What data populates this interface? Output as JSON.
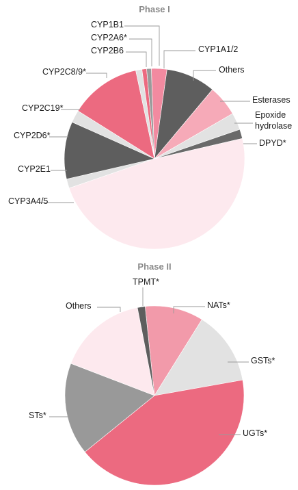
{
  "chart_data": [
    {
      "type": "pie",
      "title": "Phase I",
      "unit": "degrees",
      "slices": [
        {
          "name": "CYP1A1/2",
          "value": 10,
          "color": "#f28aa0"
        },
        {
          "name": "Others",
          "value": 32,
          "color": "#5e5e5e"
        },
        {
          "name": "Esterases",
          "value": 20,
          "color": "#f6aab8"
        },
        {
          "name": "Epoxide hydrolase",
          "value": 11,
          "color": "#e2e2e2"
        },
        {
          "name": "DPYD*",
          "value": 6,
          "color": "#6a6a6a"
        },
        {
          "name": "CYP3A4/5",
          "value": 174,
          "color": "#fde9ee"
        },
        {
          "name": "CYP2E1",
          "value": 6,
          "color": "#e2e2e2"
        },
        {
          "name": "CYP2D6*",
          "value": 37,
          "color": "#5e5e5e"
        },
        {
          "name": "CYP2C19*",
          "value": 8,
          "color": "#e2e2e2"
        },
        {
          "name": "CYP2C8/9*",
          "value": 46,
          "color": "#ec6a80"
        },
        {
          "name": "CYP2B6",
          "value": 4,
          "color": "#e2e2e2"
        },
        {
          "name": "CYP2A6*",
          "value": 3,
          "color": "#ec6a80"
        },
        {
          "name": "CYP1B1",
          "value": 3,
          "color": "#9a9a9a"
        }
      ]
    },
    {
      "type": "pie",
      "title": "Phase II",
      "unit": "degrees",
      "slices": [
        {
          "name": "NATs*",
          "value": 38,
          "color": "#f29aaa"
        },
        {
          "name": "GSTs*",
          "value": 48,
          "color": "#e2e2e2"
        },
        {
          "name": "UGTs*",
          "value": 151,
          "color": "#ec6a80"
        },
        {
          "name": "STs*",
          "value": 60,
          "color": "#999999"
        },
        {
          "name": "Others",
          "value": 58,
          "color": "#fde9ee"
        },
        {
          "name": "TPMT*",
          "value": 5,
          "color": "#5e5e5e"
        }
      ]
    }
  ]
}
